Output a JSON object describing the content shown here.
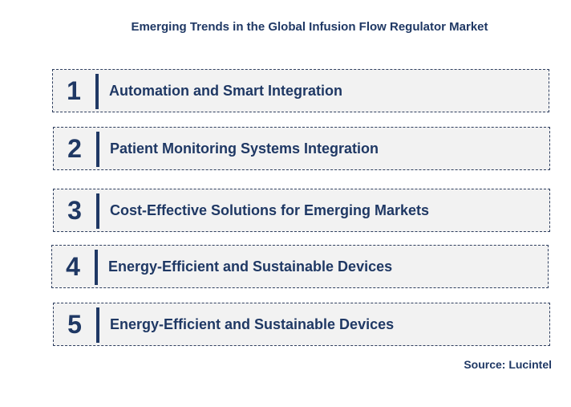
{
  "title": "Emerging Trends in the Global Infusion Flow Regulator Market",
  "trends": [
    {
      "number": "1",
      "label": "Automation and Smart Integration"
    },
    {
      "number": "2",
      "label": "Patient Monitoring Systems Integration"
    },
    {
      "number": "3",
      "label": "Cost-Effective Solutions for Emerging Markets"
    },
    {
      "number": "4",
      "label": "Energy-Efficient and Sustainable Devices"
    },
    {
      "number": "5",
      "label": "Energy-Efficient and Sustainable Devices"
    }
  ],
  "source": "Source: Lucintel",
  "colors": {
    "text": "#1f3864",
    "box_fill": "#f2f2f2",
    "box_border": "#2f3f5f"
  }
}
